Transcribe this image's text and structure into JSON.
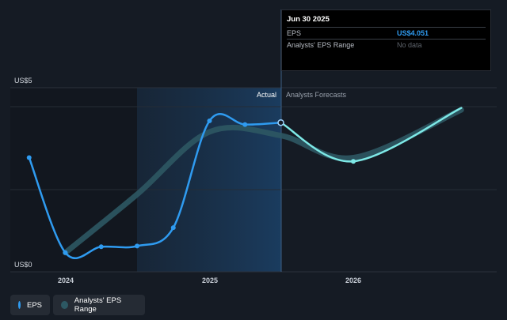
{
  "tooltip": {
    "date": "Jun 30 2025",
    "rows": [
      {
        "label": "EPS",
        "value": "US$4.051"
      },
      {
        "label": "Analysts' EPS Range",
        "value": "No data"
      }
    ]
  },
  "legend": {
    "eps": "EPS",
    "range": "Analysts' EPS Range"
  },
  "colors": {
    "eps": "#2f9bf0",
    "forecast": "#7de8e6",
    "range": "#2d5863",
    "background": "#151b24"
  },
  "chart_data": {
    "type": "line",
    "y_labels": {
      "top": "US$5",
      "bottom": "US$0"
    },
    "ylim": [
      0,
      5
    ],
    "x_ticks": [
      "2024",
      "2025",
      "2026"
    ],
    "section_labels": {
      "actual": "Actual",
      "forecast": "Analysts Forecasts"
    },
    "split_date": "2025-06-30",
    "series": [
      {
        "name": "EPS",
        "points": [
          {
            "x": "2023-09-30",
            "y": 3.1
          },
          {
            "x": "2023-12-31",
            "y": 0.52
          },
          {
            "x": "2024-03-31",
            "y": 0.68
          },
          {
            "x": "2024-06-30",
            "y": 0.7
          },
          {
            "x": "2024-09-30",
            "y": 1.2
          },
          {
            "x": "2024-12-31",
            "y": 4.1
          },
          {
            "x": "2025-03-31",
            "y": 4.0
          },
          {
            "x": "2025-06-30",
            "y": 4.051
          }
        ]
      },
      {
        "name": "Analysts' EPS Range",
        "points": [
          {
            "x": "2023-12-31",
            "y": 0.52
          },
          {
            "x": "2024-06-30",
            "y": 2.1
          },
          {
            "x": "2024-12-31",
            "y": 3.8
          },
          {
            "x": "2025-06-30",
            "y": 3.7
          },
          {
            "x": "2026-01-01",
            "y": 3.1
          },
          {
            "x": "2026-10-01",
            "y": 4.4
          }
        ]
      },
      {
        "name": "Forecast",
        "points": [
          {
            "x": "2025-06-30",
            "y": 4.051
          },
          {
            "x": "2025-12-31",
            "y": 3.0
          },
          {
            "x": "2026-10-01",
            "y": 4.45
          }
        ]
      }
    ]
  }
}
